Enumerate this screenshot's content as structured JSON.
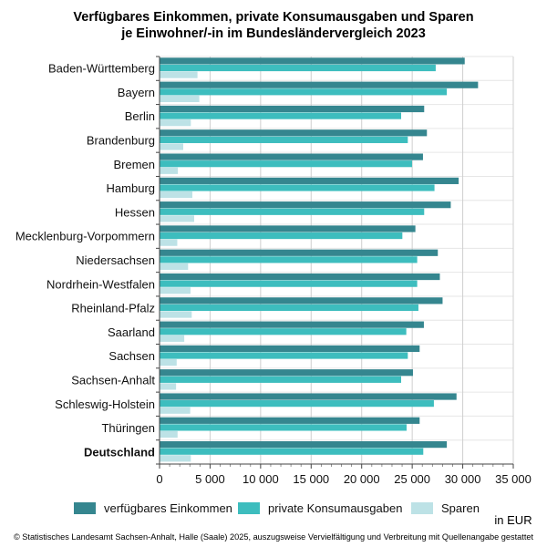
{
  "chart_data": {
    "type": "bar",
    "orientation": "horizontal",
    "title": "Verfügbares Einkommen, private Konsumausgaben und Sparen",
    "subtitle": "je Einwohner/-in im Bundesländervergleich 2023",
    "xlabel": "in EUR",
    "xlim": [
      0,
      35000
    ],
    "xticks": [
      0,
      5000,
      10000,
      15000,
      20000,
      25000,
      30000,
      35000
    ],
    "xtick_labels": [
      "0",
      "5 000",
      "10 000",
      "15 000",
      "20 000",
      "25 000",
      "30 000",
      "35 000"
    ],
    "grid": true,
    "legend_position": "bottom",
    "categories": [
      "Baden-Württemberg",
      "Bayern",
      "Berlin",
      "Brandenburg",
      "Bremen",
      "Hamburg",
      "Hessen",
      "Mecklenburg-Vorpommern",
      "Niedersachsen",
      "Nordrhein-Westfalen",
      "Rheinland-Pfalz",
      "Saarland",
      "Sachsen",
      "Sachsen-Anhalt",
      "Schleswig-Holstein",
      "Thüringen",
      "Deutschland"
    ],
    "bold_categories": [
      "Deutschland"
    ],
    "series": [
      {
        "name": "verfügbares Einkommen",
        "color": "#35868f",
        "values": [
          30150,
          31470,
          26140,
          26410,
          26020,
          29550,
          28770,
          25270,
          27490,
          27690,
          27960,
          26110,
          25690,
          25030,
          29340,
          25690,
          28380
        ]
      },
      {
        "name": "private Konsumausgaben",
        "color": "#3dbdbe",
        "values": [
          27280,
          28380,
          23860,
          24520,
          24940,
          27160,
          26140,
          23980,
          25450,
          25450,
          25570,
          24370,
          24520,
          23860,
          27100,
          24400,
          26050
        ]
      },
      {
        "name": "Sparen",
        "color": "#bde2e6",
        "values": [
          3710,
          3890,
          3050,
          2300,
          1770,
          3200,
          3380,
          1710,
          2780,
          3020,
          3140,
          2400,
          1650,
          1590,
          2990,
          1740,
          3050
        ]
      }
    ]
  },
  "footer": "© Statistisches Landesamt Sachsen-Anhalt, Halle (Saale) 2025, auszugsweise Vervielfältigung und Verbreitung mit Quellenangabe gestattet"
}
